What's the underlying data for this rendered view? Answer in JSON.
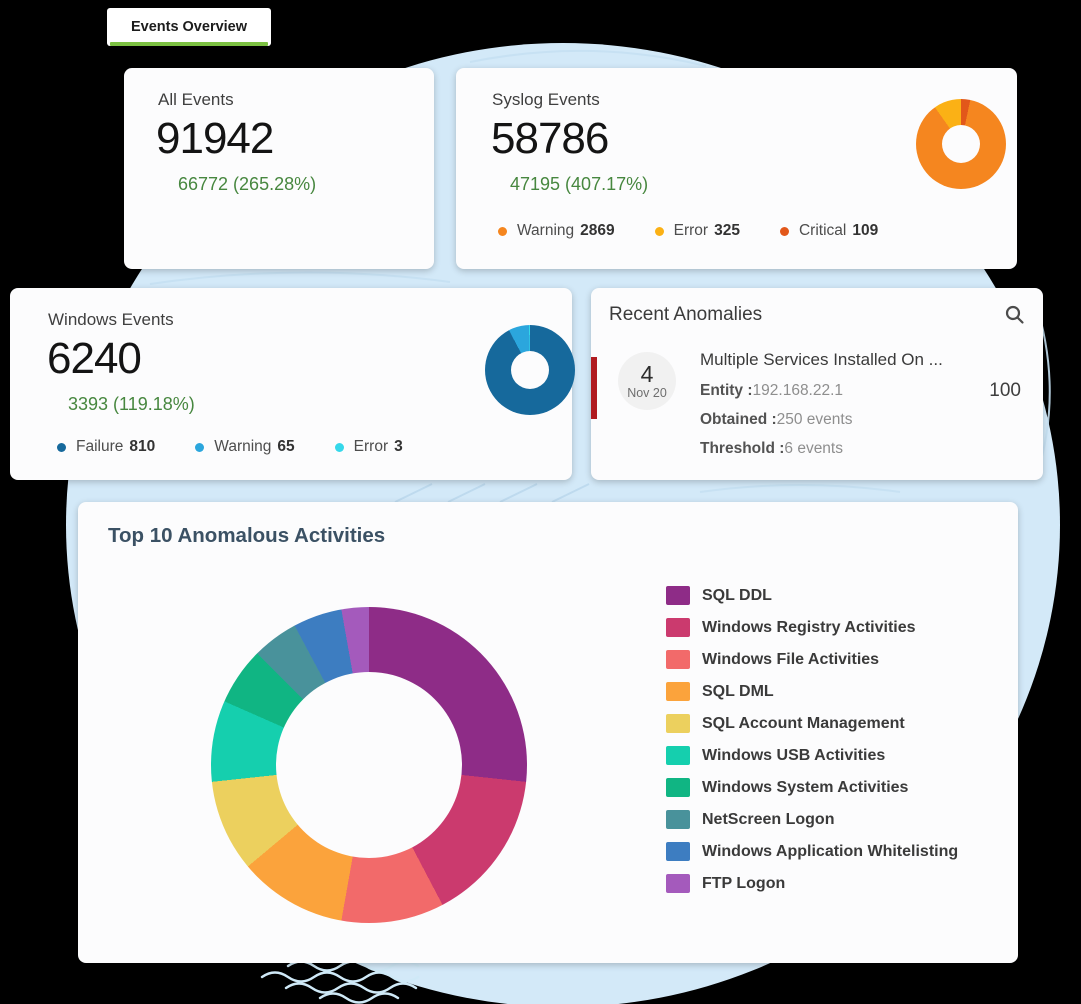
{
  "page": {
    "background": "#000000",
    "circle_color": "#d3e9f8"
  },
  "tab": {
    "label": "Events Overview",
    "underline_color": "#7cc142"
  },
  "cards": {
    "all_events": {
      "title": "All Events",
      "value": "91942",
      "delta": "66772 (265.28%)",
      "delta_color": "#47873f"
    },
    "syslog": {
      "title": "Syslog Events",
      "value": "58786",
      "delta": "47195 (407.17%)",
      "legend": [
        {
          "label": "Warning",
          "value": "2869",
          "color": "#f5861f"
        },
        {
          "label": "Error",
          "value": "325",
          "color": "#fbb115"
        },
        {
          "label": "Critical",
          "value": "109",
          "color": "#e2571a"
        }
      ]
    },
    "windows": {
      "title": "Windows Events",
      "value": "6240",
      "delta": "3393 (119.18%)",
      "legend": [
        {
          "label": "Failure",
          "value": "810",
          "color": "#16699c"
        },
        {
          "label": "Warning",
          "value": "65",
          "color": "#2ba6dd"
        },
        {
          "label": "Error",
          "value": "3",
          "color": "#35d8ea"
        }
      ]
    },
    "anomalies": {
      "title": "Recent Anomalies",
      "item": {
        "day": "4",
        "date": "Nov 20",
        "name": "Multiple Services Installed On ...",
        "fields": [
          {
            "label": "Entity :",
            "value": "192.168.22.1"
          },
          {
            "label": "Obtained :",
            "value": "250 events"
          },
          {
            "label": "Threshold :",
            "value": "6 events"
          }
        ],
        "score": "100",
        "accent_color": "#b01b20"
      }
    },
    "top10": {
      "title": "Top 10 Anomalous Activities"
    }
  },
  "chart_data": [
    {
      "name": "syslog-severity-donut",
      "type": "pie",
      "donut": true,
      "series": [
        {
          "name": "Warning",
          "value": 2869,
          "color": "#f5861f"
        },
        {
          "name": "Error",
          "value": 325,
          "color": "#fbb115"
        },
        {
          "name": "Critical",
          "value": 109,
          "color": "#e2571a"
        }
      ],
      "draw_order": [
        2,
        0,
        1
      ],
      "start_angle_deg": 0,
      "legend_position": "bottom"
    },
    {
      "name": "windows-severity-donut",
      "type": "pie",
      "donut": true,
      "series": [
        {
          "name": "Failure",
          "value": 810,
          "color": "#16699c"
        },
        {
          "name": "Warning",
          "value": 65,
          "color": "#2ba6dd"
        },
        {
          "name": "Error",
          "value": 3,
          "color": "#35d8ea"
        }
      ],
      "draw_order": [
        0,
        1,
        2
      ],
      "start_angle_deg": 0,
      "legend_position": "bottom"
    },
    {
      "name": "top10-anomalous-activities-donut",
      "type": "pie",
      "donut": true,
      "title": "Top 10 Anomalous Activities",
      "units": "percent_estimated",
      "series": [
        {
          "name": "SQL DDL",
          "value": 26.7,
          "color": "#8e2c87"
        },
        {
          "name": "Windows Registry Activities",
          "value": 15.6,
          "color": "#cb3a6e"
        },
        {
          "name": "Windows File Activities",
          "value": 10.5,
          "color": "#f26a6a"
        },
        {
          "name": "SQL DML",
          "value": 11.1,
          "color": "#fba33c"
        },
        {
          "name": "SQL Account Management",
          "value": 9.4,
          "color": "#ecd05e"
        },
        {
          "name": "Windows USB Activities",
          "value": 8.3,
          "color": "#15cfae"
        },
        {
          "name": "Windows System Activities",
          "value": 5.9,
          "color": "#10b583"
        },
        {
          "name": "NetScreen Logon",
          "value": 4.7,
          "color": "#49929b"
        },
        {
          "name": "Windows Application Whitelisting",
          "value": 5.0,
          "color": "#3d7dc1"
        },
        {
          "name": "FTP Logon",
          "value": 2.8,
          "color": "#a45abc"
        }
      ],
      "draw_order": [
        0,
        1,
        2,
        3,
        4,
        5,
        6,
        7,
        8,
        9
      ],
      "start_angle_deg": 0,
      "legend_position": "right"
    }
  ]
}
